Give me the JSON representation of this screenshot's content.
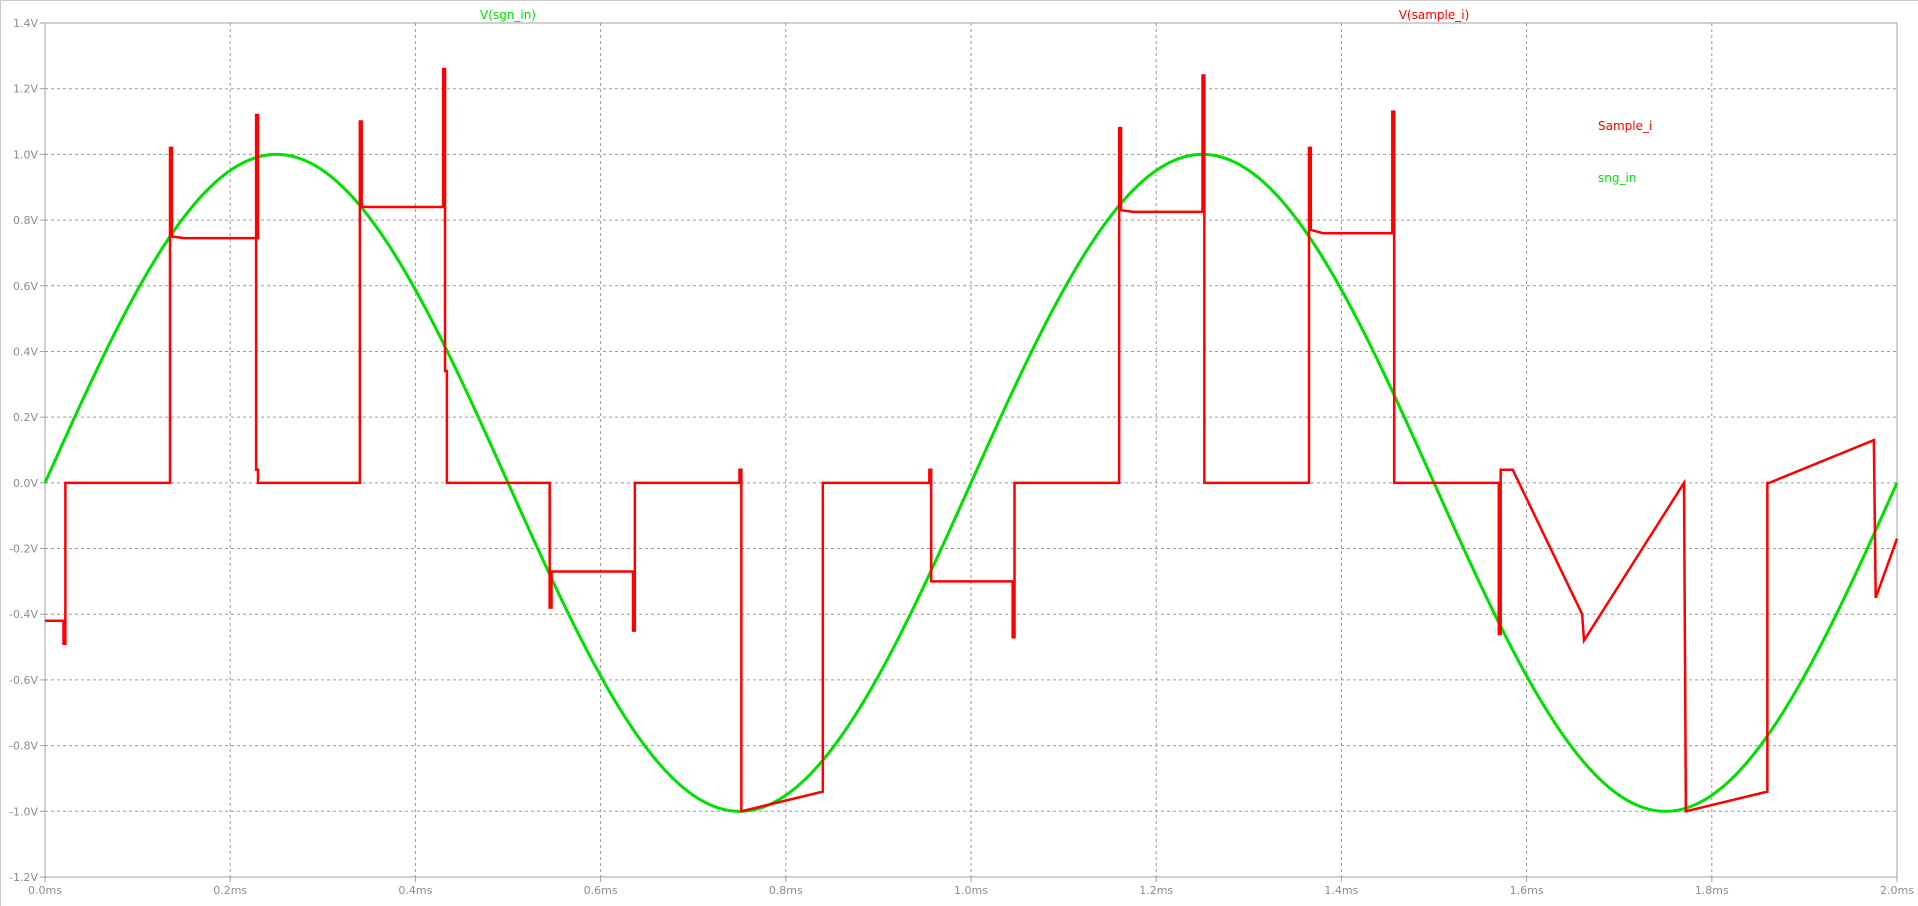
{
  "colors": {
    "background": "#ffffff",
    "grid": "#9a9a9a",
    "axis": "#a0a0a0",
    "tick_text": "#8c8c8c",
    "sample_i": "#ff0000",
    "sgn_in": "#00e000"
  },
  "trace_labels": {
    "sgn_in": "V(sgn_in)",
    "sample_i": "V(sample_i)"
  },
  "legend": {
    "sample_i": "Sample_i",
    "sgn_in": "sng_in"
  },
  "chart_data": {
    "type": "line",
    "grid": true,
    "legend_position": "top-right",
    "xlim": [
      0,
      2.0
    ],
    "ylim": [
      -1.2,
      1.4
    ],
    "x_ticks": [
      "0.0ms",
      "0.2ms",
      "0.4ms",
      "0.6ms",
      "0.8ms",
      "1.0ms",
      "1.2ms",
      "1.4ms",
      "1.6ms",
      "1.8ms",
      "2.0ms"
    ],
    "y_ticks": [
      "1.4V",
      "1.2V",
      "1.0V",
      "0.8V",
      "0.6V",
      "0.4V",
      "0.2V",
      "0.0V",
      "-0.2V",
      "-0.4V",
      "-0.6V",
      "-0.8V",
      "-1.0V",
      "-1.2V"
    ],
    "series": [
      {
        "name": "V(sgn_in)",
        "kind": "sine",
        "amplitude": 1.0,
        "frequency_per_ms": 1.0,
        "x_range": [
          0,
          2.0
        ]
      },
      {
        "name": "V(sample_i)",
        "kind": "polyline",
        "x": [
          0.0,
          0.02,
          0.02,
          0.022,
          0.022,
          0.135,
          0.135,
          0.137,
          0.137,
          0.15,
          0.23,
          0.23,
          0.228,
          0.228,
          0.23,
          0.23,
          0.34,
          0.34,
          0.342,
          0.342,
          0.43,
          0.43,
          0.432,
          0.432,
          0.434,
          0.434,
          0.545,
          0.545,
          0.547,
          0.547,
          0.635,
          0.635,
          0.637,
          0.637,
          0.75,
          0.75,
          0.752,
          0.752,
          0.84,
          0.84,
          0.842,
          0.842,
          0.955,
          0.955,
          0.957,
          0.957,
          0.97,
          1.045,
          1.045,
          1.047,
          1.047,
          1.16,
          1.16,
          1.162,
          1.162,
          1.175,
          1.25,
          1.25,
          1.252,
          1.252,
          1.365,
          1.365,
          1.367,
          1.367,
          1.38,
          1.455,
          1.455,
          1.457,
          1.457,
          1.57,
          1.57,
          1.572,
          1.572,
          1.585,
          1.66,
          1.66,
          1.662,
          1.662,
          1.77,
          1.77,
          1.772,
          1.772,
          1.86,
          1.86,
          1.862,
          1.862,
          1.975,
          1.975,
          1.977,
          1.977,
          2.0
        ],
        "y": [
          -0.42,
          -0.42,
          -0.49,
          -0.49,
          0.0,
          0.0,
          1.02,
          1.02,
          0.75,
          0.745,
          0.745,
          1.12,
          1.12,
          0.04,
          0.04,
          0.0,
          0.0,
          1.1,
          1.1,
          0.84,
          0.84,
          1.26,
          1.26,
          0.34,
          0.34,
          0.0,
          0.0,
          -0.38,
          -0.38,
          -0.27,
          -0.27,
          -0.45,
          -0.45,
          0.0,
          0.0,
          0.04,
          0.04,
          -1.0,
          -0.94,
          0.0,
          0.0,
          0.0,
          0.0,
          0.04,
          0.04,
          -0.3,
          -0.3,
          -0.3,
          -0.47,
          -0.47,
          0.0,
          0.0,
          1.08,
          1.08,
          0.83,
          0.825,
          0.825,
          1.24,
          1.24,
          0.0,
          0.0,
          1.02,
          1.02,
          0.77,
          0.76,
          0.76,
          1.13,
          1.13,
          0.0,
          0.0,
          -0.46,
          -0.46,
          0.04,
          0.04,
          -0.4,
          -0.4,
          -0.48,
          -0.48,
          0.0,
          0.0,
          -1.0,
          -1.0,
          -0.94,
          0.0,
          0.0,
          0.0,
          0.13,
          0.13,
          -0.35,
          -0.35,
          -0.17
        ]
      }
    ]
  }
}
